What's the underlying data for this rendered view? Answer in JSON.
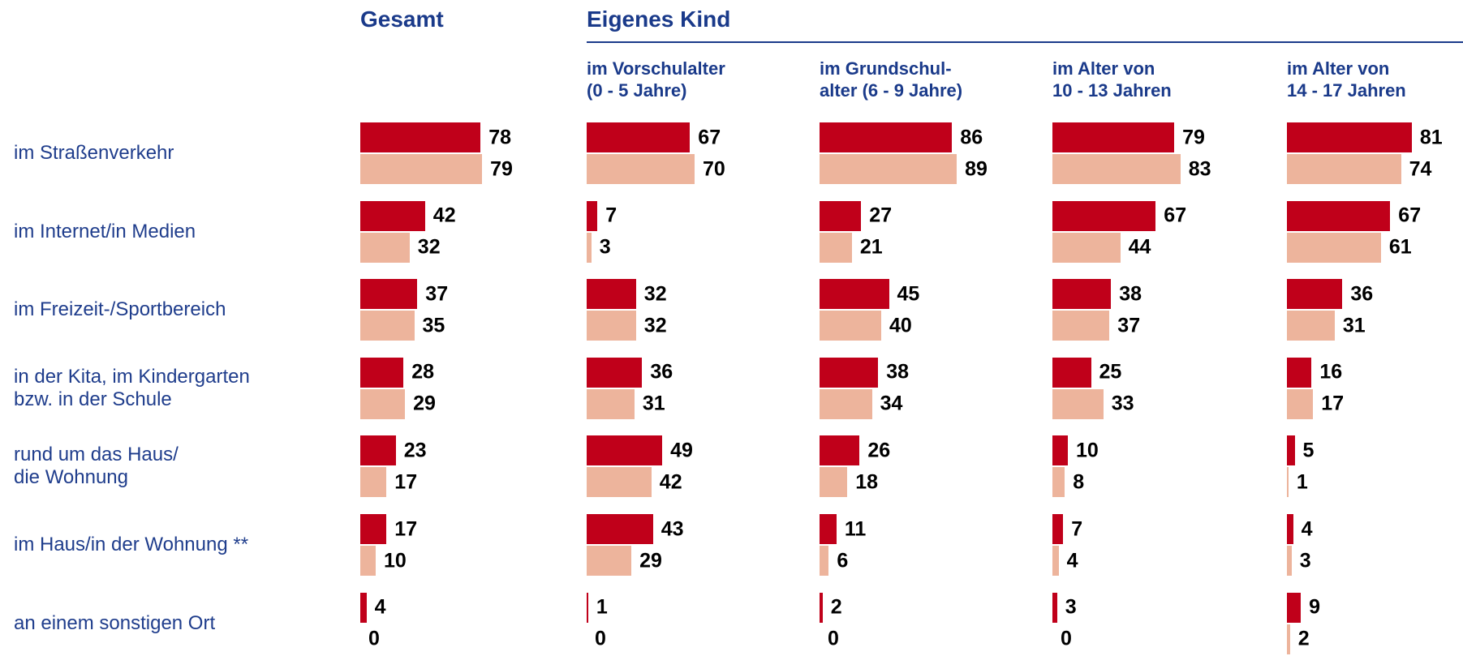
{
  "chart_data": {
    "type": "bar",
    "orientation": "horizontal",
    "group_title": "Eigenes Kind",
    "categories": [
      "im Straßenverkehr",
      "im Internet/in Medien",
      "im Freizeit-/Sportbereich",
      "in der Kita, im Kindergarten\nbzw. in der Schule",
      "rund um das Haus/\ndie Wohnung",
      "im Haus/in der Wohnung **",
      "an einem sonstigen Ort"
    ],
    "panels": [
      {
        "title": "Gesamt",
        "series": [
          {
            "color": "#c0001a",
            "values": [
              78,
              42,
              37,
              28,
              23,
              17,
              4
            ]
          },
          {
            "color": "#edb49c",
            "values": [
              79,
              32,
              35,
              29,
              17,
              10,
              0
            ]
          }
        ]
      },
      {
        "title": "im Vorschulalter\n(0 - 5 Jahre)",
        "series": [
          {
            "color": "#c0001a",
            "values": [
              67,
              7,
              32,
              36,
              49,
              43,
              1
            ]
          },
          {
            "color": "#edb49c",
            "values": [
              70,
              3,
              32,
              31,
              42,
              29,
              0
            ]
          }
        ]
      },
      {
        "title": "im Grundschul-\nalter (6 - 9 Jahre)",
        "series": [
          {
            "color": "#c0001a",
            "values": [
              86,
              27,
              45,
              38,
              26,
              11,
              2
            ]
          },
          {
            "color": "#edb49c",
            "values": [
              89,
              21,
              40,
              34,
              18,
              6,
              0
            ]
          }
        ]
      },
      {
        "title": "im Alter von\n10 - 13 Jahren",
        "series": [
          {
            "color": "#c0001a",
            "values": [
              79,
              67,
              38,
              25,
              10,
              7,
              3
            ]
          },
          {
            "color": "#edb49c",
            "values": [
              83,
              44,
              37,
              33,
              8,
              4,
              0
            ]
          }
        ]
      },
      {
        "title": "im Alter von\n14 - 17 Jahren",
        "series": [
          {
            "color": "#c0001a",
            "values": [
              81,
              67,
              36,
              16,
              5,
              4,
              9
            ]
          },
          {
            "color": "#edb49c",
            "values": [
              74,
              61,
              31,
              17,
              1,
              3,
              2
            ]
          }
        ]
      }
    ]
  }
}
